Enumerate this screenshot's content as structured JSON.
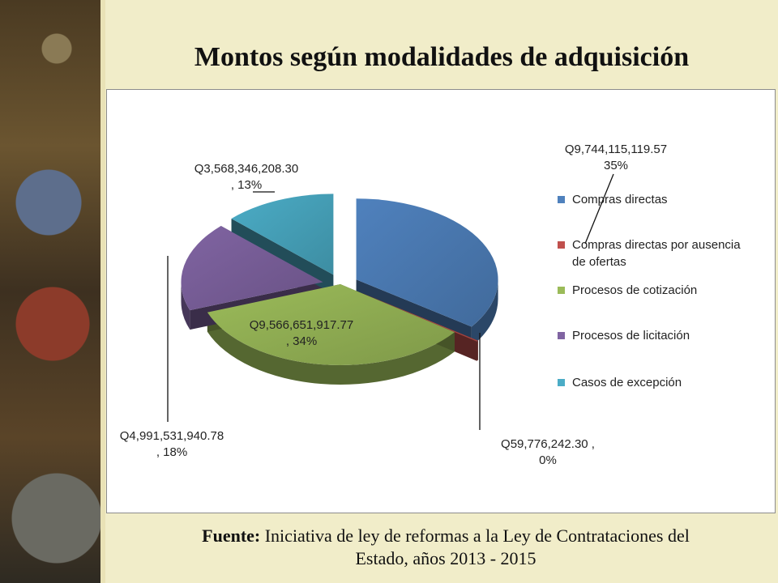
{
  "title": "Montos según modalidades de adquisición",
  "source": {
    "prefix": "Fuente:",
    "line1": "Iniciativa de ley de reformas a la Ley de Contrataciones del",
    "line2": "Estado, años 2013 - 2015"
  },
  "chart_data": {
    "type": "pie",
    "style": "3d-exploded",
    "legend_position": "right",
    "series": [
      {
        "name": "Compras directas",
        "value": 9744115119.57,
        "label_value": "Q9,744,115,119.57",
        "label_pct": "35%",
        "color": "#4F81BD"
      },
      {
        "name": "Compras directas por ausencia de ofertas",
        "legend_lines": [
          "Compras directas por ausencia",
          "de ofertas"
        ],
        "value": 59776242.3,
        "label_value": "Q59,776,242.30 ,",
        "label_pct": "0%",
        "color": "#C0504D"
      },
      {
        "name": "Procesos de cotización",
        "value": 9566651917.77,
        "label_value": "Q9,566,651,917.77",
        "label_pct": ", 34%",
        "color": "#9BBB59"
      },
      {
        "name": "Procesos de licitación",
        "value": 4991531940.78,
        "label_value": "Q4,991,531,940.78",
        "label_pct": ", 18%",
        "color": "#8064A2"
      },
      {
        "name": "Casos de excepción",
        "value": 3568346208.3,
        "label_value": "Q3,568,346,208.30",
        "label_pct": ", 13%",
        "color": "#4BACC6"
      }
    ]
  }
}
